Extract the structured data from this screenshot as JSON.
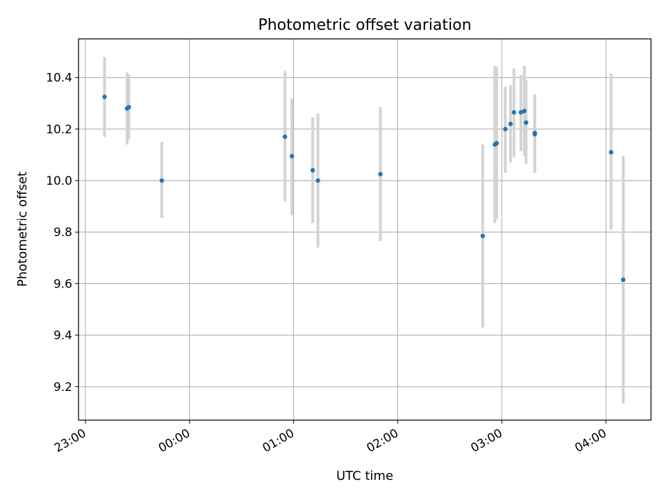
{
  "chart_data": {
    "type": "scatter",
    "title": "Photometric offset variation",
    "xlabel": "UTC time",
    "ylabel": "Photometric offset",
    "x_tick_labels": [
      "23:00",
      "00:00",
      "01:00",
      "02:00",
      "03:00",
      "04:00"
    ],
    "y_tick_labels": [
      "9.2",
      "9.4",
      "9.6",
      "9.8",
      "10.0",
      "10.2",
      "10.4"
    ],
    "x_unit": "UTC time (HH:MM)",
    "xlim": [
      "22:56",
      "04:26"
    ],
    "ylim": [
      9.07,
      10.55
    ],
    "grid": true,
    "colors": {
      "marker": "#1f77b4",
      "errorbar": "#d3d3d3",
      "grid": "#b0b0b0"
    },
    "points": [
      {
        "x": "23:11",
        "y": 10.325,
        "yerr_low": 10.17,
        "yerr_high": 10.48
      },
      {
        "x": "23:24",
        "y": 10.28,
        "yerr_low": 10.14,
        "yerr_high": 10.42
      },
      {
        "x": "23:25",
        "y": 10.285,
        "yerr_low": 10.16,
        "yerr_high": 10.41
      },
      {
        "x": "23:44",
        "y": 10.0,
        "yerr_low": 9.855,
        "yerr_high": 10.15
      },
      {
        "x": "00:55",
        "y": 10.17,
        "yerr_low": 9.92,
        "yerr_high": 10.425
      },
      {
        "x": "00:59",
        "y": 10.095,
        "yerr_low": 9.865,
        "yerr_high": 10.32
      },
      {
        "x": "01:11",
        "y": 10.04,
        "yerr_low": 9.835,
        "yerr_high": 10.245
      },
      {
        "x": "01:14",
        "y": 10.0,
        "yerr_low": 9.74,
        "yerr_high": 10.26
      },
      {
        "x": "01:50",
        "y": 10.025,
        "yerr_low": 9.765,
        "yerr_high": 10.285
      },
      {
        "x": "02:49",
        "y": 9.785,
        "yerr_low": 9.43,
        "yerr_high": 10.14
      },
      {
        "x": "02:56",
        "y": 10.14,
        "yerr_low": 9.835,
        "yerr_high": 10.445
      },
      {
        "x": "02:57",
        "y": 10.145,
        "yerr_low": 9.85,
        "yerr_high": 10.44
      },
      {
        "x": "03:02",
        "y": 10.2,
        "yerr_low": 10.03,
        "yerr_high": 10.365
      },
      {
        "x": "03:05",
        "y": 10.22,
        "yerr_low": 10.07,
        "yerr_high": 10.37
      },
      {
        "x": "03:07",
        "y": 10.265,
        "yerr_low": 10.09,
        "yerr_high": 10.435
      },
      {
        "x": "03:11",
        "y": 10.265,
        "yerr_low": 10.115,
        "yerr_high": 10.41
      },
      {
        "x": "03:13",
        "y": 10.27,
        "yerr_low": 10.095,
        "yerr_high": 10.445
      },
      {
        "x": "03:14",
        "y": 10.225,
        "yerr_low": 10.065,
        "yerr_high": 10.39
      },
      {
        "x": "03:19",
        "y": 10.18,
        "yerr_low": 10.03,
        "yerr_high": 10.335
      },
      {
        "x": "03:19",
        "y": 10.185,
        "yerr_low": 10.04,
        "yerr_high": 10.33
      },
      {
        "x": "04:03",
        "y": 10.11,
        "yerr_low": 9.81,
        "yerr_high": 10.415
      },
      {
        "x": "04:10",
        "y": 9.615,
        "yerr_low": 9.135,
        "yerr_high": 10.095
      }
    ]
  }
}
